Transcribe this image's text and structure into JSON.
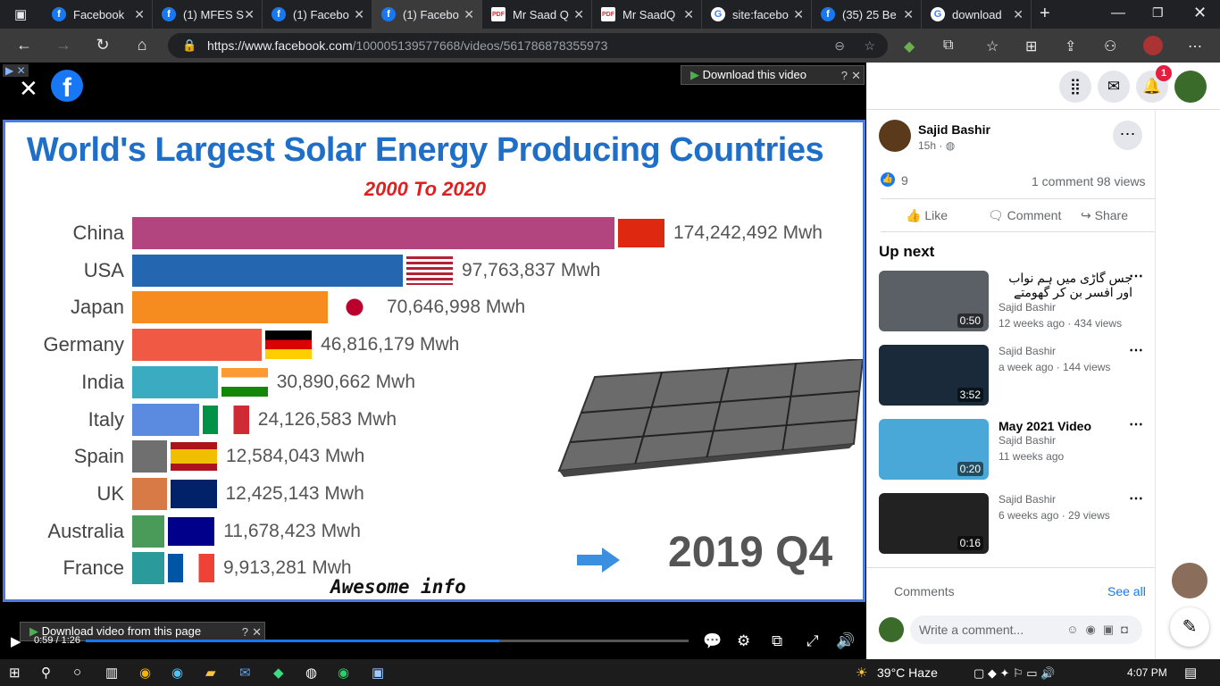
{
  "tabs": [
    {
      "label": "Facebook",
      "icon": "facebook-icon"
    },
    {
      "label": "(1) MFES S",
      "icon": "facebook-icon"
    },
    {
      "label": "(1) Facebo",
      "icon": "facebook-icon"
    },
    {
      "label": "(1) Facebo",
      "icon": "facebook-icon",
      "active": true
    },
    {
      "label": "Mr Saad Q",
      "icon": "pdf-icon"
    },
    {
      "label": "Mr SaadQ",
      "icon": "pdf-icon"
    },
    {
      "label": "site:facebo",
      "icon": "google-icon"
    },
    {
      "label": "(35) 25 Be",
      "icon": "facebook-icon"
    },
    {
      "label": "download",
      "icon": "google-icon"
    }
  ],
  "address": {
    "host": "https://www.facebook.com",
    "path": "/100005139577668/videos/561786878355973"
  },
  "video": {
    "download_top": "Download this video",
    "download_bottom": "Download video from this page",
    "time": "0:59 / 1:26",
    "progress": 0.686
  },
  "chart_data": {
    "type": "bar",
    "title": "World's Largest Solar Energy Producing Countries",
    "subtitle": "2000 To 2020",
    "orientation": "horizontal",
    "categories": [
      "China",
      "USA",
      "Japan",
      "Germany",
      "India",
      "Italy",
      "Spain",
      "UK",
      "Australia",
      "France"
    ],
    "values": [
      174242492,
      97763837,
      70646998,
      46816179,
      30890662,
      24126583,
      12584043,
      12425143,
      11678423,
      9913281
    ],
    "value_labels": [
      "174,242,492 Mwh",
      "97,763,837 Mwh",
      "70,646,998 Mwh",
      "46,816,179 Mwh",
      "30,890,662 Mwh",
      "24,126,583 Mwh",
      "12,584,043 Mwh",
      "12,425,143 Mwh",
      "11,678,423 Mwh",
      "9,913,281 Mwh"
    ],
    "colors": [
      "#b2457f",
      "#2466b0",
      "#f68b1f",
      "#f05a45",
      "#3aabc0",
      "#5a8be0",
      "#6f6f70",
      "#d87a45",
      "#4a9a5a",
      "#2a9a9a"
    ],
    "period": "2019 Q4",
    "watermark": "Awesome info"
  },
  "post": {
    "author": "Sajid Bashir",
    "time": "15h ·",
    "likes": "9",
    "comments": "1 comment",
    "views": "98 views",
    "like_label": "Like",
    "comment_label": "Comment",
    "share_label": "Share"
  },
  "header": {
    "notifications": "1"
  },
  "up_next": {
    "title": "Up next",
    "items": [
      {
        "title": "جس گاڑی میں ہم نواب اور افسر بن کر گھومتے",
        "channel": "Sajid Bashir",
        "meta": "12 weeks ago · 434 views",
        "duration": "0:50"
      },
      {
        "title": "",
        "channel": "Sajid Bashir",
        "meta": "a week ago · 144 views",
        "duration": "3:52"
      },
      {
        "title": "May 2021 Video",
        "channel": "Sajid Bashir",
        "meta": "11 weeks ago",
        "duration": "0:20"
      },
      {
        "title": "",
        "channel": "Sajid Bashir",
        "meta": "6 weeks ago · 29 views",
        "duration": "0:16"
      }
    ]
  },
  "comments_bar": {
    "label": "Comments",
    "see_all": "See all",
    "placeholder": "Write a comment..."
  },
  "taskbar": {
    "weather": "39°C  Haze",
    "time": "4:07 PM"
  }
}
